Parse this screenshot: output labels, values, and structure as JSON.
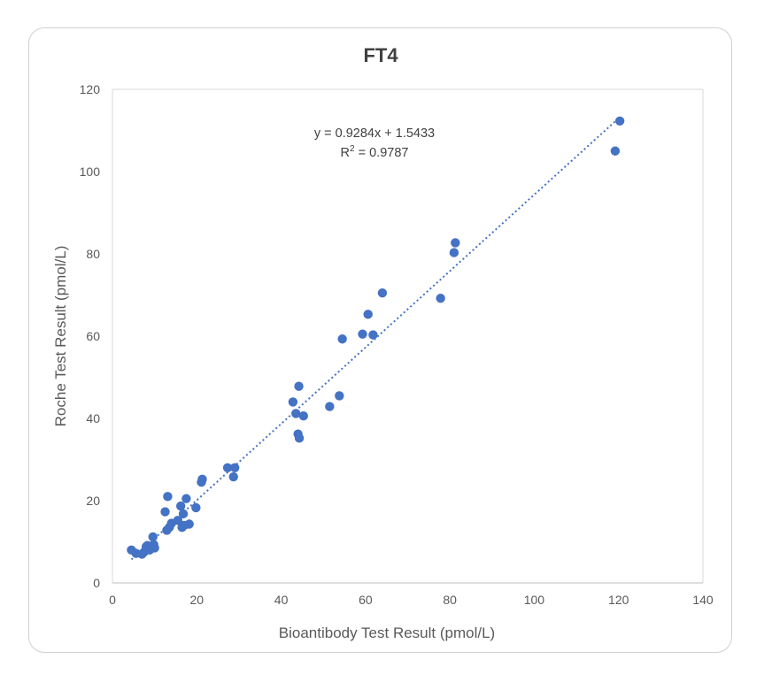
{
  "chart_data": {
    "type": "scatter",
    "title": "FT4",
    "xlabel": "Bioantibody Test Result (pmol/L)",
    "ylabel": "Roche Test Result (pmol/L)",
    "xlim": [
      0,
      140
    ],
    "ylim": [
      0,
      120
    ],
    "x_ticks": [
      0,
      20,
      40,
      60,
      80,
      100,
      120,
      140
    ],
    "y_ticks": [
      0,
      20,
      40,
      60,
      80,
      100,
      120
    ],
    "x_tick_labels": [
      "0",
      "20",
      "40",
      "60",
      "80",
      "100",
      "120",
      "140"
    ],
    "y_tick_labels": [
      "0",
      "20",
      "40",
      "60",
      "80",
      "100",
      "120"
    ],
    "grid": false,
    "colors": {
      "points": "#4472c4",
      "trendline": "#4472c4"
    },
    "trendline": {
      "type": "linear",
      "slope": 0.9284,
      "intercept": 1.5433,
      "x_range": [
        4.5,
        120
      ],
      "equation": "y = 0.9284x + 1.5433",
      "r2_prefix": "R",
      "r2_sup": "2",
      "r2_suffix": " = 0.9787"
    },
    "series": [
      {
        "x": [
          4.5,
          5.6,
          7.0,
          7.5,
          8.0,
          8.3,
          8.8,
          9.6,
          9.8,
          10.0,
          12.5,
          12.9,
          13.1,
          13.5,
          14.0,
          15.5,
          16.2,
          16.5,
          16.8,
          17.0,
          17.5,
          18.2,
          19.8,
          21.1,
          21.3,
          27.3,
          28.7,
          29.0,
          42.8,
          43.5,
          44.0,
          44.2,
          44.3,
          45.3,
          51.5,
          53.8,
          54.5,
          59.3,
          61.8,
          60.6,
          64.0,
          77.8,
          81.0,
          81.3,
          119.2,
          120.3
        ],
        "y": [
          8.0,
          7.2,
          7.0,
          7.5,
          8.8,
          9.1,
          8.0,
          11.2,
          9.3,
          8.5,
          17.3,
          12.8,
          21.0,
          13.5,
          14.5,
          15.2,
          18.7,
          13.5,
          16.8,
          14.0,
          20.5,
          14.3,
          18.3,
          24.5,
          25.2,
          28.0,
          25.8,
          28.0,
          44.0,
          41.2,
          36.2,
          47.8,
          35.2,
          40.6,
          42.9,
          45.5,
          59.3,
          60.5,
          60.3,
          65.3,
          70.5,
          69.2,
          80.3,
          82.7,
          105.0,
          112.3
        ]
      }
    ]
  }
}
